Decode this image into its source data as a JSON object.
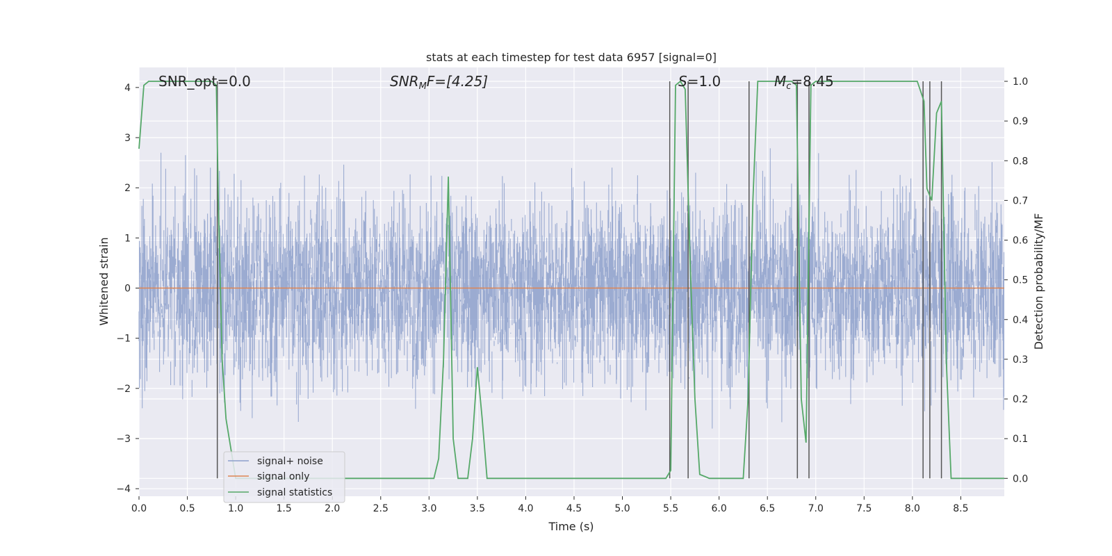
{
  "chart_data": {
    "type": "line",
    "title": "stats at each timestep for test data 6957 [signal=0]",
    "xlabel": "Time (s)",
    "ylabel": "Whitened strain",
    "ylabel_right": "Detection probability/MF",
    "xlim": [
      0.0,
      8.95
    ],
    "ylim": [
      -4.15,
      4.4
    ],
    "ylim_right": [
      -0.045,
      1.035
    ],
    "x_ticks": [
      "0.0",
      "0.5",
      "1.0",
      "1.5",
      "2.0",
      "2.5",
      "3.0",
      "3.5",
      "4.0",
      "4.5",
      "5.0",
      "5.5",
      "6.0",
      "6.5",
      "7.0",
      "7.5",
      "8.0",
      "8.5"
    ],
    "y_ticks": [
      "4",
      "3",
      "2",
      "1",
      "0",
      "−1",
      "−2",
      "−3",
      "−4"
    ],
    "y_right_ticks": [
      "1.0",
      "0.9",
      "0.8",
      "0.7",
      "0.6",
      "0.5",
      "0.4",
      "0.3",
      "0.2",
      "0.1",
      "0.0"
    ],
    "grid": true,
    "legend_placement": "lower-left",
    "annotations": {
      "snr_opt": "SNR_opt=0.0",
      "snr_mf_italic": "SNR",
      "snr_mf_sub": "M",
      "snr_mf_tail": "F=[4.25]",
      "s_italic": "S",
      "s_tail": "=1.0",
      "mc_italic": "M",
      "mc_sub": "c",
      "mc_tail": "=8.45"
    },
    "series": [
      {
        "name": "signal+ noise",
        "color": "#8da0cb",
        "envelope_y": [
          -3.5,
          3.6
        ]
      },
      {
        "name": "signal only",
        "color": "#dd8452",
        "y": 0.0
      },
      {
        "name": "signal statistics",
        "color": "#55a868",
        "axis": "right",
        "x": [
          0.0,
          0.05,
          0.1,
          0.4,
          0.75,
          0.8,
          0.82,
          0.86,
          0.9,
          1.0,
          3.05,
          3.1,
          3.15,
          3.2,
          3.25,
          3.3,
          3.4,
          3.45,
          3.5,
          3.55,
          3.6,
          4.0,
          5.45,
          5.5,
          5.55,
          5.6,
          5.65,
          5.7,
          5.75,
          5.8,
          5.9,
          6.25,
          6.3,
          6.35,
          6.4,
          6.5,
          6.75,
          6.8,
          6.85,
          6.9,
          6.95,
          7.0,
          7.5,
          8.05,
          8.12,
          8.15,
          8.2,
          8.25,
          8.3,
          8.35,
          8.4,
          8.45,
          8.95
        ],
        "y": [
          0.83,
          0.99,
          1.0,
          1.0,
          1.0,
          0.99,
          0.7,
          0.3,
          0.15,
          0.0,
          0.0,
          0.05,
          0.3,
          0.76,
          0.1,
          0.0,
          0.0,
          0.1,
          0.28,
          0.15,
          0.0,
          0.0,
          0.0,
          0.02,
          0.99,
          1.0,
          0.98,
          0.55,
          0.2,
          0.01,
          0.0,
          0.0,
          0.2,
          0.7,
          1.0,
          1.0,
          1.0,
          0.99,
          0.2,
          0.09,
          0.99,
          1.0,
          1.0,
          1.0,
          0.95,
          0.73,
          0.7,
          0.92,
          0.95,
          0.3,
          0.0,
          0.0,
          0.0
        ]
      }
    ],
    "vertical_markers_x": [
      0.81,
      5.49,
      5.68,
      6.31,
      6.81,
      6.93,
      8.11,
      8.18,
      8.3
    ]
  }
}
